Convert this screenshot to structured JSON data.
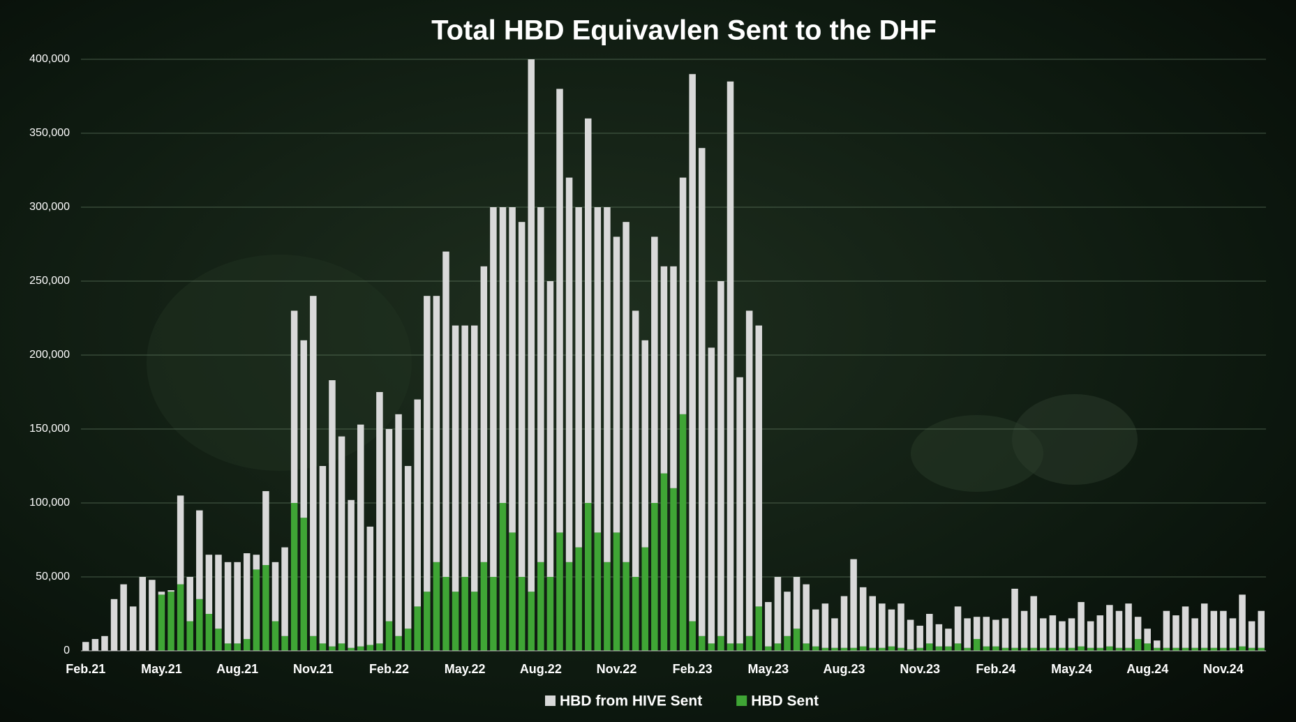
{
  "chart_data": {
    "type": "bar",
    "stacked": true,
    "title": "Total HBD Equivavlen Sent to the DHF",
    "categories": [
      "Feb.21",
      null,
      null,
      null,
      null,
      null,
      null,
      null,
      "May.21",
      null,
      null,
      null,
      null,
      null,
      null,
      null,
      "Aug.21",
      null,
      null,
      null,
      null,
      null,
      null,
      null,
      "Nov.21",
      null,
      null,
      null,
      null,
      null,
      null,
      null,
      "Feb.22",
      null,
      null,
      null,
      null,
      null,
      null,
      null,
      "May.22",
      null,
      null,
      null,
      null,
      null,
      null,
      null,
      "Aug.22",
      null,
      null,
      null,
      null,
      null,
      null,
      null,
      "Nov.22",
      null,
      null,
      null,
      null,
      null,
      null,
      null,
      "Feb.23",
      null,
      null,
      null,
      null,
      null,
      null,
      null,
      "May.23",
      null,
      null,
      null,
      null,
      null,
      null,
      null,
      "Aug.23",
      null,
      null,
      null,
      null,
      null,
      null,
      null,
      "Nov.23",
      null,
      null,
      null,
      null,
      null,
      null,
      null,
      "Feb.24",
      null,
      null,
      null,
      null,
      null,
      null,
      null,
      "May.24",
      null,
      null,
      null,
      null,
      null,
      null,
      null,
      "Aug.24",
      null,
      null,
      null,
      null,
      null,
      null,
      null,
      "Nov.24",
      null,
      null,
      null,
      null
    ],
    "series": [
      {
        "name": "HBD Sent",
        "color": "#3fa535",
        "values": [
          0,
          0,
          0,
          0,
          0,
          0,
          0,
          0,
          38000,
          40000,
          45000,
          20000,
          35000,
          25000,
          15000,
          5000,
          5000,
          8000,
          55000,
          58000,
          20000,
          10000,
          100000,
          90000,
          10000,
          5000,
          3000,
          5000,
          2000,
          3000,
          4000,
          5000,
          20000,
          10000,
          15000,
          30000,
          40000,
          60000,
          50000,
          40000,
          50000,
          40000,
          60000,
          50000,
          100000,
          80000,
          50000,
          40000,
          60000,
          50000,
          80000,
          60000,
          70000,
          100000,
          80000,
          60000,
          80000,
          60000,
          50000,
          70000,
          100000,
          120000,
          110000,
          160000,
          20000,
          10000,
          5000,
          10000,
          5000,
          5000,
          10000,
          30000,
          3000,
          5000,
          10000,
          15000,
          5000,
          3000,
          2000,
          2000,
          2000,
          2000,
          3000,
          2000,
          2000,
          3000,
          2000,
          1000,
          2000,
          5000,
          3000,
          3000,
          5000,
          2000,
          8000,
          3000,
          3000,
          2000,
          2000,
          2000,
          2000,
          2000,
          2000,
          2000,
          2000,
          3000,
          2000,
          2000,
          3000,
          2000,
          2000,
          8000,
          5000,
          2000,
          2000,
          2000,
          2000,
          2000,
          2000,
          2000,
          2000,
          2000,
          3000,
          2000,
          2000
        ]
      },
      {
        "name": "HBD from HIVE Sent",
        "color": "#d9d9d9",
        "values": [
          6000,
          8000,
          10000,
          35000,
          45000,
          30000,
          50000,
          48000,
          2000,
          1000,
          60000,
          30000,
          60000,
          40000,
          50000,
          55000,
          55000,
          58000,
          10000,
          50000,
          40000,
          60000,
          130000,
          120000,
          230000,
          120000,
          180000,
          140000,
          100000,
          150000,
          80000,
          170000,
          130000,
          150000,
          110000,
          140000,
          200000,
          180000,
          220000,
          180000,
          170000,
          180000,
          200000,
          250000,
          200000,
          220000,
          240000,
          360000,
          240000,
          200000,
          300000,
          260000,
          230000,
          260000,
          220000,
          240000,
          200000,
          230000,
          180000,
          140000,
          180000,
          140000,
          150000,
          160000,
          370000,
          330000,
          200000,
          240000,
          380000,
          180000,
          220000,
          190000,
          30000,
          45000,
          30000,
          35000,
          40000,
          25000,
          30000,
          20000,
          35000,
          60000,
          40000,
          35000,
          30000,
          25000,
          30000,
          20000,
          15000,
          20000,
          15000,
          12000,
          25000,
          20000,
          15000,
          20000,
          18000,
          20000,
          40000,
          25000,
          35000,
          20000,
          22000,
          18000,
          20000,
          30000,
          18000,
          22000,
          28000,
          25000,
          30000,
          15000,
          10000,
          5000,
          25000,
          22000,
          28000,
          20000,
          30000,
          25000,
          25000,
          20000,
          35000,
          18000,
          25000
        ]
      }
    ],
    "ylim": [
      0,
      400000
    ],
    "yticks": [
      0,
      {
        "value": 50000,
        "label": "50,000"
      },
      {
        "value": 100000,
        "label": "100,000"
      },
      {
        "value": 150000,
        "label": "150,000"
      },
      {
        "value": 200000,
        "label": "200,000"
      },
      {
        "value": 250000,
        "label": "250,000"
      },
      {
        "value": 300000,
        "label": "300,000"
      },
      {
        "value": 350000,
        "label": "350,000"
      },
      {
        "value": 400000,
        "label": "400,000"
      }
    ],
    "grid": true,
    "legend": "bottom"
  }
}
